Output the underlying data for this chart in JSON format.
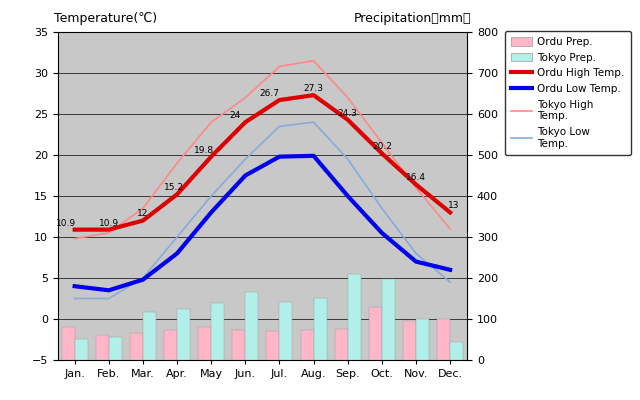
{
  "months": [
    "Jan.",
    "Feb.",
    "Mar.",
    "Apr.",
    "May",
    "Jun.",
    "Jul.",
    "Aug.",
    "Sep.",
    "Oct.",
    "Nov.",
    "Dec."
  ],
  "ordu_high": [
    10.9,
    10.9,
    12.0,
    15.2,
    19.8,
    24.0,
    26.7,
    27.3,
    24.3,
    20.2,
    16.4,
    13.0
  ],
  "ordu_low": [
    4.0,
    3.5,
    4.8,
    8.0,
    13.0,
    17.5,
    19.8,
    19.9,
    15.0,
    10.5,
    7.0,
    6.0
  ],
  "tokyo_high": [
    9.8,
    10.5,
    13.5,
    19.0,
    24.0,
    27.0,
    30.8,
    31.5,
    27.0,
    21.5,
    16.0,
    11.0
  ],
  "tokyo_low": [
    2.5,
    2.5,
    5.0,
    10.0,
    15.0,
    19.5,
    23.5,
    24.0,
    19.5,
    13.5,
    8.0,
    4.5
  ],
  "ordu_precip_mm": [
    80,
    62,
    65,
    72,
    80,
    72,
    70,
    72,
    75,
    130,
    95,
    100
  ],
  "tokyo_precip_mm": [
    52,
    56,
    118,
    125,
    138,
    165,
    142,
    152,
    210,
    198,
    100,
    44
  ],
  "temp_ylim": [
    -5,
    35
  ],
  "precip_ylim": [
    0,
    800
  ],
  "temp_yticks": [
    -5,
    0,
    5,
    10,
    15,
    20,
    25,
    30,
    35
  ],
  "precip_yticks": [
    0,
    100,
    200,
    300,
    400,
    500,
    600,
    700,
    800
  ],
  "ordu_high_color": "#dd0000",
  "ordu_low_color": "#0000ee",
  "tokyo_high_color": "#ff8888",
  "tokyo_low_color": "#88aadd",
  "ordu_precip_color": "#ffb6c8",
  "tokyo_precip_color": "#b0f0e8",
  "bg_color": "#c8c8c8",
  "plot_bg_color": "#c8c8c8",
  "title_left": "Temperature(℃)",
  "title_right": "Precipitation（mm）",
  "legend_labels": [
    "Ordu Prep.",
    "Tokyo Prep.",
    "Ordu High Temp.",
    "Ordu Low Temp.",
    "Tokyo High\nTemp.",
    "Tokyo Low\nTemp."
  ],
  "ordu_high_labels": [
    "10.9",
    "10.9",
    "12",
    "15.2",
    "19.8",
    "24",
    "26.7",
    "27.3",
    "24.3",
    "20.2",
    "16.4",
    "13"
  ]
}
